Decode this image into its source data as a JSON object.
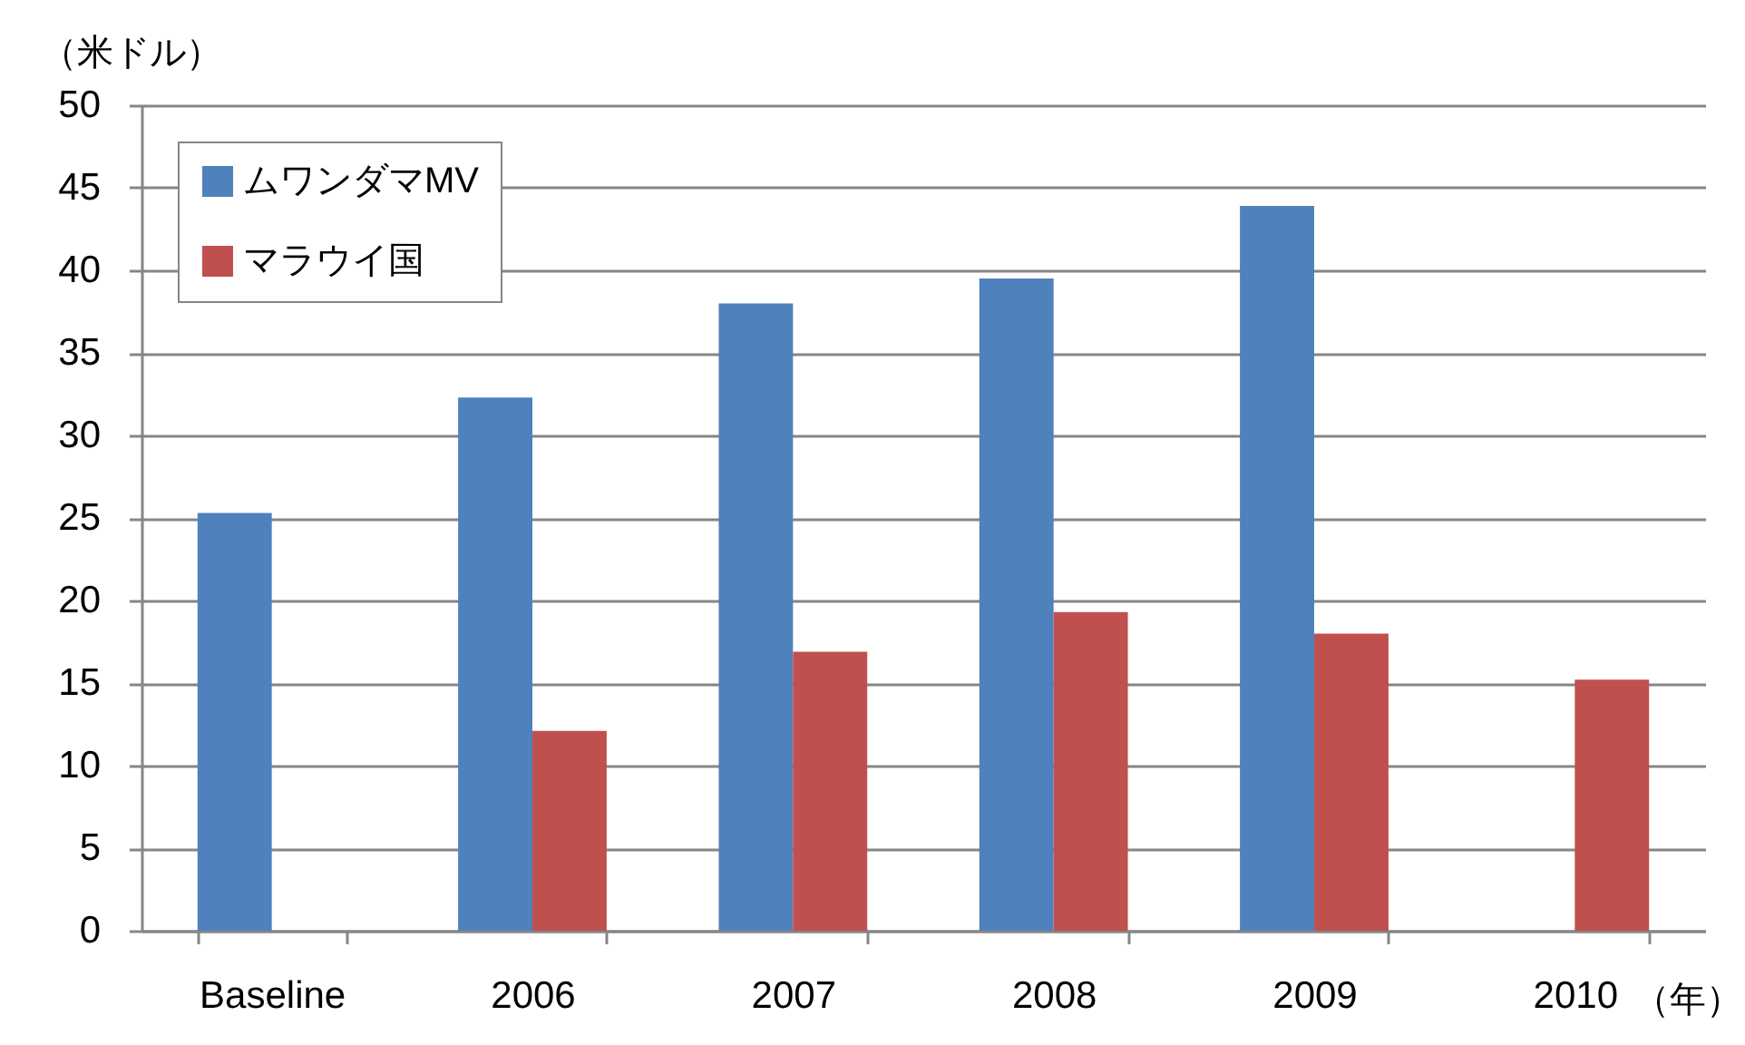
{
  "chart_data": {
    "type": "bar",
    "ylabel": "（米ドル）",
    "xlabel": "（年）",
    "categories": [
      "Baseline",
      "2006",
      "2007",
      "2008",
      "2009",
      "2010"
    ],
    "series": [
      {
        "name": "ムワンダマMV",
        "color": "#4f81bd",
        "values": [
          25.3,
          32.3,
          38.0,
          39.5,
          43.9,
          null
        ]
      },
      {
        "name": "マラウイ国",
        "color": "#c0504d",
        "values": [
          null,
          12.1,
          16.9,
          19.3,
          18.0,
          15.2
        ]
      }
    ],
    "ylim": [
      0,
      50
    ],
    "yticks": [
      0,
      5,
      10,
      15,
      20,
      25,
      30,
      35,
      40,
      45,
      50
    ],
    "grid": "y",
    "legend": "top left"
  }
}
